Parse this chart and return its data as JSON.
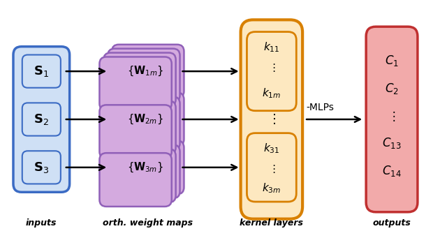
{
  "fig_width": 6.4,
  "fig_height": 3.41,
  "dpi": 100,
  "bg_color": "#ffffff",
  "input_box_facecolor": "#cfe0f5",
  "input_box_edgecolor": "#3b6bc4",
  "input_labels": [
    "$\\mathbf{S}_1$",
    "$\\mathbf{S}_2$",
    "$\\mathbf{S}_3$"
  ],
  "weight_box_facecolor": "#d4aadf",
  "weight_box_edgecolor": "#9060b8",
  "weight_labels": [
    "$\\{\\mathbf{W}_{1m}\\}$",
    "$\\{\\mathbf{W}_{2m}\\}$",
    "$\\{\\mathbf{W}_{3m}\\}$"
  ],
  "kernel_inner_facecolor": "#fde8c0",
  "kernel_outer_edgecolor": "#d88000",
  "kernel_outer_facecolor": "#fde8c0",
  "kernel_top_labels": [
    "$k_{11}$",
    "$\\vdots$",
    "$k_{1m}$"
  ],
  "kernel_bot_labels": [
    "$k_{31}$",
    "$\\vdots$",
    "$k_{3m}$"
  ],
  "output_box_facecolor": "#f2aaaa",
  "output_box_edgecolor": "#c03030",
  "output_labels": [
    "$C_1$",
    "$C_2$",
    "$\\vdots$",
    "$C_{13}$",
    "$C_{14}$"
  ],
  "bottom_labels": [
    "inputs",
    "orth. weight maps",
    "kernel layers",
    "outputs"
  ],
  "mlps_label": "-MLPs"
}
